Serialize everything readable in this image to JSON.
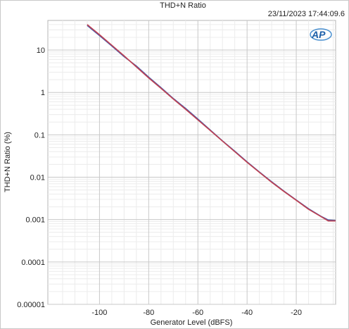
{
  "chart_data": {
    "type": "line",
    "title": "THD+N Ratio",
    "timestamp": "23/11/2023 17:44:09.6",
    "logo": "AP",
    "xlabel": "Generator Level (dBFS)",
    "ylabel": "THD+N Ratio (%)",
    "xlim": [
      -121,
      -4
    ],
    "ylim": [
      1e-05,
      50
    ],
    "y_scale": "log",
    "grid": true,
    "x_ticks": [
      {
        "value": -100,
        "label": "-100"
      },
      {
        "value": -80,
        "label": "-80"
      },
      {
        "value": -60,
        "label": "-60"
      },
      {
        "value": -40,
        "label": "-40"
      },
      {
        "value": -20,
        "label": "-20"
      }
    ],
    "y_ticks": [
      {
        "value": 10,
        "label": "10"
      },
      {
        "value": 1,
        "label": "1"
      },
      {
        "value": 0.1,
        "label": "0.1"
      },
      {
        "value": 0.01,
        "label": "0.01"
      },
      {
        "value": 0.001,
        "label": "0.001"
      },
      {
        "value": 0.0001,
        "label": "0.0001"
      },
      {
        "value": 1e-05,
        "label": "0.00001"
      }
    ],
    "series": [
      {
        "color": "#4a5aa8",
        "x": [
          -105,
          -100,
          -95,
          -90,
          -85,
          -80,
          -75,
          -70,
          -65,
          -60,
          -55,
          -50,
          -45,
          -40,
          -35,
          -30,
          -25,
          -20,
          -15,
          -10,
          -7,
          -4
        ],
        "y": [
          38,
          22,
          12.5,
          7.0,
          4.2,
          2.3,
          1.3,
          0.72,
          0.42,
          0.235,
          0.13,
          0.072,
          0.041,
          0.023,
          0.0133,
          0.0078,
          0.0047,
          0.0029,
          0.0018,
          0.0012,
          0.00098,
          0.00095
        ]
      },
      {
        "color": "#c04050",
        "x": [
          -105,
          -100,
          -95,
          -90,
          -85,
          -80,
          -75,
          -70,
          -65,
          -60,
          -55,
          -50,
          -45,
          -40,
          -35,
          -30,
          -25,
          -20,
          -15,
          -10,
          -7,
          -4
        ],
        "y": [
          40,
          23,
          13,
          7.3,
          4.0,
          2.2,
          1.25,
          0.7,
          0.4,
          0.225,
          0.127,
          0.071,
          0.04,
          0.0225,
          0.013,
          0.0076,
          0.0046,
          0.00285,
          0.00175,
          0.00118,
          0.00093,
          0.00093
        ]
      }
    ]
  }
}
